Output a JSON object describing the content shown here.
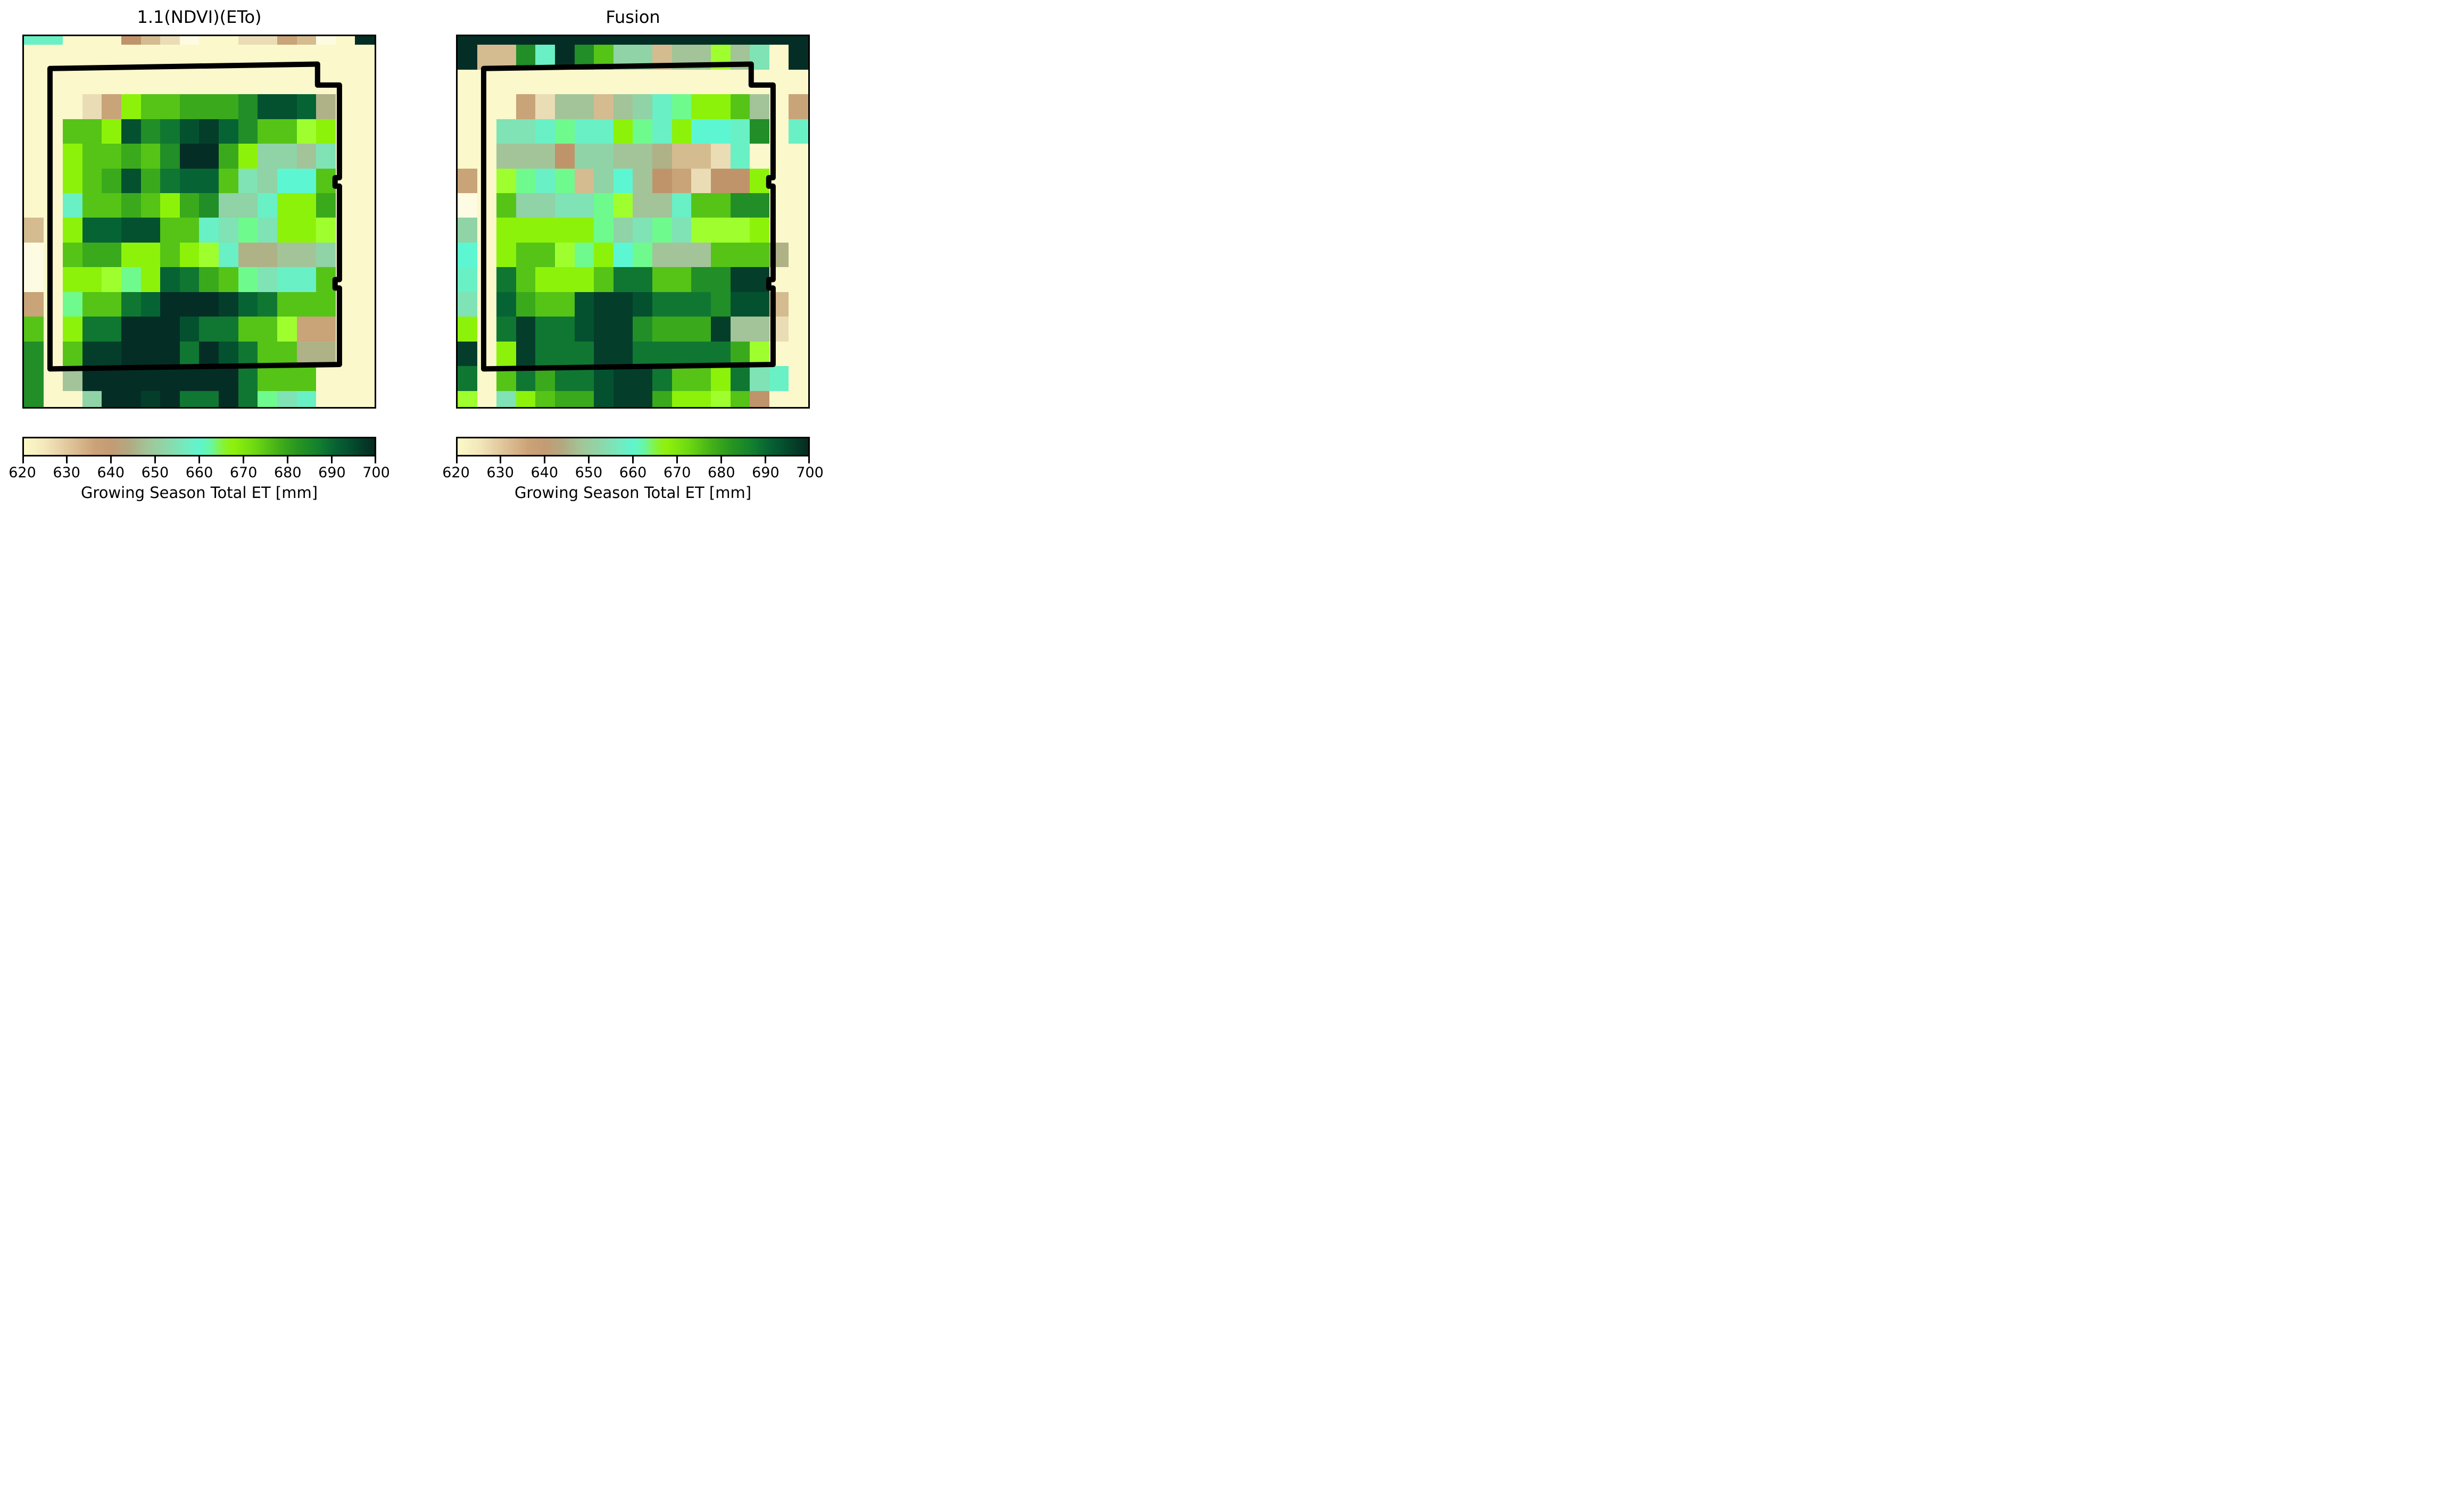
{
  "chart_data": {
    "type": "heatmap",
    "unit": "mm",
    "value_range": [
      620,
      700
    ],
    "grid_size": {
      "columns": 18,
      "rows": 16
    },
    "row_weights": [
      0.35,
      1,
      1,
      1,
      1,
      1,
      1,
      1,
      1,
      1,
      1,
      1,
      1,
      1,
      1,
      0.65
    ],
    "colorbar": {
      "label": "Growing Season Total ET [mm]",
      "ticks": [
        "620",
        "630",
        "640",
        "650",
        "660",
        "670",
        "680",
        "690",
        "700"
      ],
      "tick_values": [
        620,
        630,
        640,
        650,
        660,
        670,
        680,
        690,
        700
      ],
      "gradient_stops": [
        [
          0.0,
          "#FCF9C7"
        ],
        [
          0.06,
          "#F3E8BB"
        ],
        [
          0.13,
          "#E0C59A"
        ],
        [
          0.2,
          "#CCA377"
        ],
        [
          0.25,
          "#C39B74"
        ],
        [
          0.3,
          "#B2A982"
        ],
        [
          0.35,
          "#A3C496"
        ],
        [
          0.41,
          "#8CD8AA"
        ],
        [
          0.46,
          "#74EABE"
        ],
        [
          0.5,
          "#60F4CE"
        ],
        [
          0.53,
          "#66F7A9"
        ],
        [
          0.555,
          "#7FF45B"
        ],
        [
          0.58,
          "#8CF21B"
        ],
        [
          0.6,
          "#8DF00B"
        ],
        [
          0.66,
          "#6CD811"
        ],
        [
          0.72,
          "#46B317"
        ],
        [
          0.78,
          "#27961F"
        ],
        [
          0.84,
          "#12802E"
        ],
        [
          0.89,
          "#076233"
        ],
        [
          0.94,
          "#044A2D"
        ],
        [
          1.0,
          "#052A21"
        ]
      ]
    },
    "palette": {
      "c0": {
        "hex": "#FBF8CC",
        "et_mm": 621
      },
      "c0b": {
        "hex": "#FDFBE2",
        "et_mm": 620
      },
      "t1": {
        "hex": "#EADDB5",
        "et_mm": 629
      },
      "t2": {
        "hex": "#D4BC90",
        "et_mm": 634
      },
      "t3": {
        "hex": "#C8A478",
        "et_mm": 639
      },
      "t4": {
        "hex": "#C0946B",
        "et_mm": 642
      },
      "g0": {
        "hex": "#AFB287",
        "et_mm": 647
      },
      "s1": {
        "hex": "#A2C498",
        "et_mm": 650
      },
      "s2": {
        "hex": "#8FD3A6",
        "et_mm": 653
      },
      "m1": {
        "hex": "#7FE3B5",
        "et_mm": 656
      },
      "m2": {
        "hex": "#69F0C5",
        "et_mm": 658
      },
      "m3": {
        "hex": "#5CF7D2",
        "et_mm": 660
      },
      "sp": {
        "hex": "#6FFA8D",
        "et_mm": 663
      },
      "l1": {
        "hex": "#8DF20A",
        "et_mm": 666
      },
      "l2": {
        "hex": "#9FFF2E",
        "et_mm": 668
      },
      "g1": {
        "hex": "#55C417",
        "et_mm": 672
      },
      "g2": {
        "hex": "#3AAA1C",
        "et_mm": 676
      },
      "g3": {
        "hex": "#218E28",
        "et_mm": 680
      },
      "g4": {
        "hex": "#107732",
        "et_mm": 684
      },
      "g5": {
        "hex": "#066434",
        "et_mm": 687
      },
      "g6": {
        "hex": "#04512F",
        "et_mm": 690
      },
      "g7": {
        "hex": "#043E2B",
        "et_mm": 694
      },
      "g8": {
        "hex": "#042E25",
        "et_mm": 698
      }
    },
    "panels": [
      {
        "title": "1.1(NDVI)(ETo)",
        "grid": [
          [
            "m2",
            "m2",
            "c0",
            "c0",
            "c0",
            "t4",
            "t2",
            "t1",
            "c0b",
            "c0",
            "c0",
            "t1",
            "t1",
            "t3",
            "t2",
            "c0b",
            "c0",
            "g8"
          ],
          [
            "c0",
            "c0",
            "c0",
            "c0",
            "c0",
            "c0",
            "c0",
            "c0",
            "c0",
            "c0",
            "c0",
            "c0",
            "c0",
            "c0",
            "c0",
            "c0",
            "c0",
            "c0"
          ],
          [
            "c0",
            "c0",
            "c0",
            "c0",
            "c0",
            "c0",
            "c0",
            "c0",
            "c0",
            "c0",
            "c0",
            "c0",
            "c0",
            "c0",
            "c0",
            "c0",
            "c0",
            "c0"
          ],
          [
            "c0",
            "c0",
            "c0",
            "t1",
            "t3",
            "l1",
            "g1",
            "g1",
            "g2",
            "g2",
            "g2",
            "g3",
            "g6",
            "g6",
            "g5",
            "g0",
            "c0",
            "c0"
          ],
          [
            "c0",
            "c0",
            "g1",
            "g1",
            "l1",
            "g6",
            "g3",
            "g4",
            "g6",
            "g7",
            "g5",
            "g3",
            "g1",
            "g1",
            "l2",
            "l1",
            "c0",
            "c0"
          ],
          [
            "c0",
            "c0",
            "l1",
            "g1",
            "g1",
            "g2",
            "g1",
            "g3",
            "g8",
            "g8",
            "g2",
            "l1",
            "s2",
            "s2",
            "s1",
            "m1",
            "c0",
            "c0"
          ],
          [
            "c0",
            "c0",
            "l1",
            "g1",
            "g2",
            "g6",
            "g2",
            "g4",
            "g5",
            "g5",
            "g1",
            "m1",
            "s2",
            "m3",
            "m3",
            "g1",
            "c0",
            "c0"
          ],
          [
            "c0",
            "c0",
            "m2",
            "g1",
            "g1",
            "g2",
            "g1",
            "l1",
            "g2",
            "g3",
            "s2",
            "s2",
            "m2",
            "l1",
            "l1",
            "g2",
            "c0",
            "c0"
          ],
          [
            "t2",
            "c0",
            "l1",
            "g5",
            "g5",
            "g6",
            "g6",
            "g1",
            "g1",
            "m2",
            "m1",
            "sp",
            "m1",
            "l1",
            "l1",
            "l2",
            "c0",
            "c0"
          ],
          [
            "c0b",
            "c0",
            "g1",
            "g2",
            "g2",
            "l1",
            "l1",
            "g1",
            "l1",
            "l2",
            "m2",
            "g0",
            "g0",
            "s1",
            "s1",
            "s2",
            "c0",
            "c0"
          ],
          [
            "c0b",
            "c0",
            "l1",
            "l1",
            "l2",
            "sp",
            "l1",
            "g5",
            "g4",
            "g2",
            "g1",
            "sp",
            "m1",
            "m2",
            "m2",
            "g1",
            "c0",
            "c0"
          ],
          [
            "t3",
            "c0",
            "sp",
            "g1",
            "g1",
            "g4",
            "g5",
            "g8",
            "g8",
            "g8",
            "g7",
            "g5",
            "g4",
            "g1",
            "g1",
            "g1",
            "c0",
            "c0"
          ],
          [
            "g1",
            "c0",
            "l1",
            "g4",
            "g4",
            "g8",
            "g8",
            "g8",
            "g6",
            "g4",
            "g4",
            "g1",
            "g1",
            "l2",
            "t3",
            "t3",
            "c0",
            "c0"
          ],
          [
            "g3",
            "c0",
            "g1",
            "g7",
            "g7",
            "g8",
            "g8",
            "g8",
            "g4",
            "g8",
            "g6",
            "g4",
            "g1",
            "g1",
            "g0",
            "g0",
            "c0",
            "c0"
          ],
          [
            "g3",
            "c0",
            "s1",
            "g8",
            "g8",
            "g8",
            "g8",
            "g8",
            "g8",
            "g8",
            "g8",
            "g4",
            "g1",
            "g1",
            "g1",
            "c0",
            "c0",
            "c0"
          ],
          [
            "g3",
            "c0",
            "c0",
            "s2",
            "g8",
            "g8",
            "g7",
            "g8",
            "g4",
            "g4",
            "g8",
            "g4",
            "sp",
            "m1",
            "m2",
            "c0",
            "c0",
            "c0"
          ]
        ]
      },
      {
        "title": "Fusion",
        "grid": [
          [
            "g8",
            "g8",
            "g8",
            "g8",
            "g8",
            "g8",
            "g8",
            "g8",
            "g8",
            "g8",
            "g8",
            "g8",
            "g8",
            "g8",
            "g8",
            "g8",
            "g8",
            "g8"
          ],
          [
            "g8",
            "t2",
            "t2",
            "g3",
            "m2",
            "g8",
            "g3",
            "g1",
            "s2",
            "s2",
            "t2",
            "s1",
            "s1",
            "l2",
            "s1",
            "m1",
            "c0",
            "g8"
          ],
          [
            "c0",
            "c0",
            "c0",
            "c0",
            "c0",
            "c0",
            "c0",
            "c0",
            "c0",
            "c0",
            "c0",
            "c0",
            "c0",
            "c0",
            "c0",
            "c0",
            "c0",
            "c0"
          ],
          [
            "c0",
            "c0",
            "c0",
            "t3",
            "t1",
            "s1",
            "s1",
            "t2",
            "s1",
            "s2",
            "m2",
            "sp",
            "l1",
            "l1",
            "g1",
            "s1",
            "c0",
            "t3"
          ],
          [
            "c0",
            "c0",
            "m1",
            "m1",
            "m2",
            "sp",
            "m2",
            "m2",
            "l1",
            "sp",
            "m2",
            "l1",
            "m3",
            "m3",
            "m2",
            "g3",
            "c0",
            "m2"
          ],
          [
            "c0",
            "c0",
            "s1",
            "s1",
            "s1",
            "t4",
            "s2",
            "s2",
            "s1",
            "s1",
            "g0",
            "t2",
            "t2",
            "t1",
            "m2",
            "c0",
            "c0",
            "c0"
          ],
          [
            "t3",
            "c0",
            "l2",
            "sp",
            "m2",
            "sp",
            "t2",
            "s2",
            "m3",
            "s1",
            "t4",
            "t3",
            "t1",
            "t4",
            "t4",
            "l1",
            "c0",
            "c0"
          ],
          [
            "c0b",
            "c0",
            "g1",
            "s2",
            "s2",
            "m1",
            "m1",
            "sp",
            "l2",
            "s1",
            "s1",
            "m2",
            "g1",
            "g1",
            "g3",
            "g3",
            "c0",
            "c0"
          ],
          [
            "s2",
            "c0",
            "l1",
            "l1",
            "l1",
            "l1",
            "l1",
            "sp",
            "s2",
            "m1",
            "sp",
            "m1",
            "l2",
            "l2",
            "l2",
            "l1",
            "c0",
            "c0"
          ],
          [
            "m3",
            "c0",
            "l1",
            "g1",
            "g1",
            "l2",
            "sp",
            "l1",
            "m3",
            "sp",
            "s1",
            "s1",
            "s1",
            "g1",
            "g1",
            "g1",
            "g0",
            "c0"
          ],
          [
            "m2",
            "c0",
            "g4",
            "g1",
            "l1",
            "l1",
            "l1",
            "g1",
            "g4",
            "g4",
            "g1",
            "g1",
            "g3",
            "g3",
            "g7",
            "g7",
            "c0",
            "c0"
          ],
          [
            "m1",
            "c0",
            "g5",
            "g2",
            "g1",
            "g1",
            "g6",
            "g7",
            "g7",
            "g6",
            "g4",
            "g4",
            "g4",
            "g3",
            "g6",
            "g6",
            "t2",
            "c0"
          ],
          [
            "l1",
            "c0",
            "g4",
            "g7",
            "g4",
            "g4",
            "g6",
            "g7",
            "g7",
            "g3",
            "g2",
            "g2",
            "g2",
            "g7",
            "s1",
            "s1",
            "t1",
            "c0"
          ],
          [
            "g7",
            "c0",
            "l1",
            "g7",
            "g4",
            "g4",
            "g4",
            "g7",
            "g7",
            "g4",
            "g4",
            "g4",
            "g4",
            "g4",
            "g2",
            "l2",
            "c0",
            "c0"
          ],
          [
            "g4",
            "c0",
            "g1",
            "g4",
            "g2",
            "g4",
            "g4",
            "g6",
            "g7",
            "g7",
            "g4",
            "g1",
            "g1",
            "l1",
            "g4",
            "m1",
            "m2",
            "c0"
          ],
          [
            "l2",
            "c0",
            "m1",
            "l1",
            "g1",
            "g2",
            "g2",
            "g6",
            "g7",
            "g7",
            "g2",
            "l1",
            "l1",
            "l2",
            "g1",
            "t4",
            "c0",
            "c0"
          ]
        ]
      }
    ],
    "outline": {
      "name": "field-boundary",
      "color": "#000000",
      "stroke_px": 10,
      "path_fractions": [
        [
          0.075,
          0.088
        ],
        [
          0.845,
          0.076
        ],
        [
          0.845,
          0.133
        ],
        [
          0.908,
          0.133
        ],
        [
          0.908,
          0.385
        ],
        [
          0.8955,
          0.385
        ],
        [
          0.8955,
          0.408
        ],
        [
          0.908,
          0.408
        ],
        [
          0.908,
          0.662
        ],
        [
          0.8955,
          0.662
        ],
        [
          0.8955,
          0.685
        ],
        [
          0.908,
          0.685
        ],
        [
          0.908,
          0.893
        ],
        [
          0.075,
          0.905
        ]
      ]
    }
  }
}
